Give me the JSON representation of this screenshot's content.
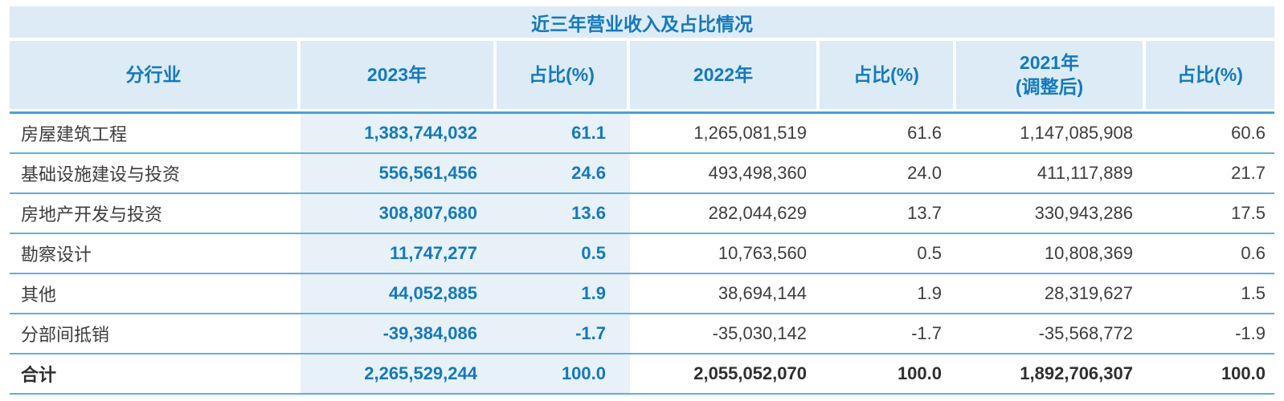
{
  "title": "近三年营业收入及占比情况",
  "colors": {
    "accent_blue_text": "#1479bd",
    "band_background": "#dcebf5",
    "highlight_column_background": "#e8f1f8",
    "row_line": "#5fb0da",
    "header_line": "#49a2d5",
    "body_text": "#3d3d3d",
    "page_background": "#ffffff"
  },
  "table": {
    "header": [
      "分行业",
      "2023年",
      "占比(%)",
      "2022年",
      "占比(%)",
      "2021年\n(调整后)",
      "占比(%)"
    ],
    "highlight_columns": [
      1,
      2
    ],
    "rows": [
      [
        "房屋建筑工程",
        "1,383,744,032",
        "61.1",
        "1,265,081,519",
        "61.6",
        "1,147,085,908",
        "60.6"
      ],
      [
        "基础设施建设与投资",
        "556,561,456",
        "24.6",
        "493,498,360",
        "24.0",
        "411,117,889",
        "21.7"
      ],
      [
        "房地产开发与投资",
        "308,807,680",
        "13.6",
        "282,044,629",
        "13.7",
        "330,943,286",
        "17.5"
      ],
      [
        "勘察设计",
        "11,747,277",
        "0.5",
        "10,763,560",
        "0.5",
        "10,808,369",
        "0.6"
      ],
      [
        "其他",
        "44,052,885",
        "1.9",
        "38,694,144",
        "1.9",
        "28,319,627",
        "1.5"
      ],
      [
        "分部间抵销",
        "-39,384,086",
        "-1.7",
        "-35,030,142",
        "-1.7",
        "-35,568,772",
        "-1.9"
      ],
      [
        "合计",
        "2,265,529,244",
        "100.0",
        "2,055,052,070",
        "100.0",
        "1,892,706,307",
        "100.0"
      ]
    ],
    "total_row_index": 6
  }
}
